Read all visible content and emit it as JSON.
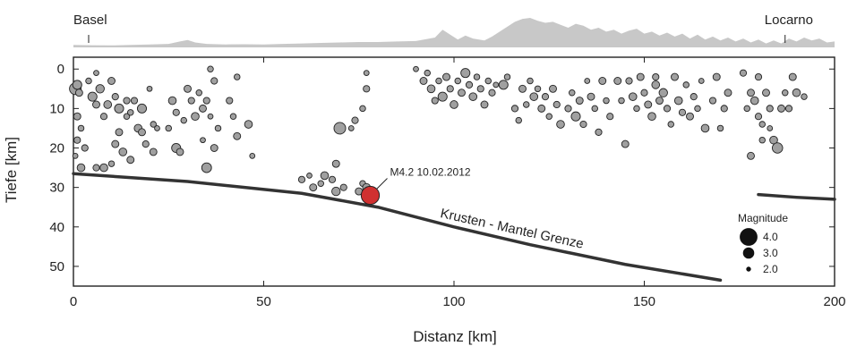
{
  "chart_data": {
    "type": "scatter",
    "xlabel": "Distanz [km]",
    "ylabel": "Tiefe [km]",
    "xlim": [
      0,
      200
    ],
    "ylim": [
      55,
      -3
    ],
    "xticks": [
      0,
      50,
      100,
      150,
      200
    ],
    "yticks": [
      0,
      10,
      20,
      30,
      40,
      50
    ],
    "grid": false,
    "profile_labels": [
      {
        "text": "Basel",
        "x": 4
      },
      {
        "text": "Locarno",
        "x": 187
      }
    ],
    "topography": [
      [
        0,
        0.25
      ],
      [
        5,
        0.22
      ],
      [
        10,
        0.2
      ],
      [
        15,
        0.25
      ],
      [
        20,
        0.3
      ],
      [
        25,
        0.35
      ],
      [
        28,
        0.6
      ],
      [
        30,
        0.75
      ],
      [
        32,
        0.5
      ],
      [
        35,
        0.35
      ],
      [
        40,
        0.3
      ],
      [
        45,
        0.32
      ],
      [
        50,
        0.3
      ],
      [
        55,
        0.35
      ],
      [
        60,
        0.4
      ],
      [
        65,
        0.45
      ],
      [
        70,
        0.5
      ],
      [
        75,
        0.55
      ],
      [
        80,
        0.55
      ],
      [
        85,
        0.6
      ],
      [
        90,
        0.65
      ],
      [
        95,
        1.0
      ],
      [
        97,
        1.8
      ],
      [
        99,
        1.3
      ],
      [
        101,
        0.8
      ],
      [
        103,
        1.2
      ],
      [
        105,
        0.9
      ],
      [
        108,
        0.7
      ],
      [
        110,
        1.1
      ],
      [
        112,
        1.6
      ],
      [
        114,
        2.1
      ],
      [
        116,
        2.6
      ],
      [
        118,
        2.9
      ],
      [
        120,
        3.0
      ],
      [
        122,
        2.7
      ],
      [
        124,
        2.5
      ],
      [
        126,
        2.6
      ],
      [
        128,
        2.3
      ],
      [
        130,
        2.0
      ],
      [
        132,
        2.4
      ],
      [
        134,
        2.2
      ],
      [
        136,
        1.8
      ],
      [
        138,
        2.0
      ],
      [
        140,
        1.6
      ],
      [
        142,
        1.8
      ],
      [
        144,
        1.4
      ],
      [
        146,
        1.7
      ],
      [
        148,
        1.9
      ],
      [
        150,
        1.4
      ],
      [
        152,
        1.6
      ],
      [
        154,
        1.2
      ],
      [
        156,
        1.5
      ],
      [
        158,
        1.1
      ],
      [
        160,
        1.4
      ],
      [
        162,
        0.9
      ],
      [
        164,
        1.3
      ],
      [
        166,
        0.8
      ],
      [
        168,
        1.1
      ],
      [
        170,
        0.7
      ],
      [
        172,
        1.0
      ],
      [
        174,
        0.6
      ],
      [
        176,
        0.9
      ],
      [
        178,
        0.5
      ],
      [
        180,
        0.8
      ],
      [
        182,
        0.4
      ],
      [
        184,
        0.7
      ],
      [
        186,
        0.4
      ],
      [
        188,
        0.9
      ],
      [
        190,
        0.6
      ],
      [
        192,
        1.0
      ],
      [
        194,
        0.7
      ],
      [
        196,
        0.9
      ],
      [
        198,
        0.5
      ],
      [
        200,
        0.6
      ]
    ],
    "boundary_label": "Krusten - Mantel Grenze",
    "boundary": {
      "segments": [
        [
          [
            0,
            26.5
          ],
          [
            30,
            28.5
          ],
          [
            60,
            31.5
          ],
          [
            80,
            35
          ],
          [
            100,
            40
          ],
          [
            120,
            44.5
          ],
          [
            145,
            49.5
          ],
          [
            170,
            53.5
          ]
        ],
        [
          [
            180,
            31.8
          ],
          [
            190,
            32.5
          ],
          [
            200,
            33
          ]
        ]
      ]
    },
    "highlight": {
      "label": "M4.2 10.02.2012",
      "x": 78,
      "y": 32,
      "mag": 4.2,
      "color": "#d03030"
    },
    "legend": {
      "title": "Magnitude",
      "position": "bottom-right",
      "entries": [
        {
          "label": "4.0",
          "mag": 4.0
        },
        {
          "label": "3.0",
          "mag": 3.0
        },
        {
          "label": "2.0",
          "mag": 2.0
        }
      ]
    },
    "series": [
      {
        "marker_color": "#a0a0a0",
        "points": [
          [
            0.5,
            5,
            3.2
          ],
          [
            1,
            4,
            2.8
          ],
          [
            1.5,
            6,
            2.5
          ],
          [
            1,
            12,
            2.5
          ],
          [
            2,
            15,
            2.3
          ],
          [
            1,
            18,
            2.4
          ],
          [
            0.5,
            22,
            2.2
          ],
          [
            2,
            25,
            2.6
          ],
          [
            3,
            20,
            2.4
          ],
          [
            4,
            3,
            2.3
          ],
          [
            5,
            7,
            2.8
          ],
          [
            6,
            1,
            2.2
          ],
          [
            6,
            9,
            2.5
          ],
          [
            7,
            5,
            2.7
          ],
          [
            8,
            12,
            2.4
          ],
          [
            9,
            9,
            2.6
          ],
          [
            10,
            3,
            2.5
          ],
          [
            11,
            7,
            2.4
          ],
          [
            12,
            10,
            2.8
          ],
          [
            12,
            16,
            2.5
          ],
          [
            13,
            21,
            2.6
          ],
          [
            14,
            12,
            2.3
          ],
          [
            15,
            23,
            2.5
          ],
          [
            16,
            8,
            2.4
          ],
          [
            17,
            15,
            2.6
          ],
          [
            18,
            10,
            2.8
          ],
          [
            19,
            19,
            2.4
          ],
          [
            20,
            5,
            2.2
          ],
          [
            21,
            14,
            2.3
          ],
          [
            21,
            21,
            2.5
          ],
          [
            6,
            25,
            2.4
          ],
          [
            8,
            25,
            2.6
          ],
          [
            10,
            24,
            2.3
          ],
          [
            11,
            19,
            2.5
          ],
          [
            14,
            8,
            2.4
          ],
          [
            15,
            11,
            2.3
          ],
          [
            18,
            16,
            2.5
          ],
          [
            22,
            15,
            2.2
          ],
          [
            25,
            15,
            2.3
          ],
          [
            26,
            8,
            2.6
          ],
          [
            27,
            11,
            2.4
          ],
          [
            27,
            20,
            2.8
          ],
          [
            28,
            21,
            2.5
          ],
          [
            29,
            13,
            2.3
          ],
          [
            30,
            5,
            2.5
          ],
          [
            31,
            8,
            2.4
          ],
          [
            32,
            12,
            2.6
          ],
          [
            33,
            6,
            2.3
          ],
          [
            34,
            10,
            2.5
          ],
          [
            34,
            18,
            2.2
          ],
          [
            35,
            25,
            2.9
          ],
          [
            35,
            8,
            2.4
          ],
          [
            36,
            0,
            2.3
          ],
          [
            36,
            12,
            2.2
          ],
          [
            37,
            3,
            2.4
          ],
          [
            37,
            20,
            2.5
          ],
          [
            38,
            15,
            2.3
          ],
          [
            41,
            8,
            2.4
          ],
          [
            42,
            12,
            2.3
          ],
          [
            43,
            2,
            2.3
          ],
          [
            43,
            17,
            2.5
          ],
          [
            46,
            14,
            2.6
          ],
          [
            47,
            22,
            2.2
          ],
          [
            60,
            28,
            2.4
          ],
          [
            62,
            27,
            2.2
          ],
          [
            63,
            30,
            2.5
          ],
          [
            65,
            29,
            2.3
          ],
          [
            66,
            27,
            2.6
          ],
          [
            68,
            28,
            2.4
          ],
          [
            69,
            24,
            2.5
          ],
          [
            69,
            31,
            2.7
          ],
          [
            70,
            15,
            3.2
          ],
          [
            71,
            30,
            2.4
          ],
          [
            73,
            15,
            2.2
          ],
          [
            74,
            13,
            2.4
          ],
          [
            75,
            31,
            2.5
          ],
          [
            76,
            29,
            2.3
          ],
          [
            77,
            30,
            2.6
          ],
          [
            76,
            10,
            2.3
          ],
          [
            77,
            5,
            2.4
          ],
          [
            77,
            1,
            2.2
          ],
          [
            90,
            0,
            2.2
          ],
          [
            92,
            3,
            2.5
          ],
          [
            93,
            1,
            2.3
          ],
          [
            94,
            5,
            2.6
          ],
          [
            95,
            8,
            2.4
          ],
          [
            96,
            3,
            2.3
          ],
          [
            97,
            7,
            2.8
          ],
          [
            98,
            2,
            2.5
          ],
          [
            99,
            5,
            2.4
          ],
          [
            100,
            9,
            2.6
          ],
          [
            101,
            3,
            2.3
          ],
          [
            102,
            6,
            2.5
          ],
          [
            103,
            1,
            2.8
          ],
          [
            104,
            4,
            2.4
          ],
          [
            105,
            7,
            2.6
          ],
          [
            106,
            2,
            2.3
          ],
          [
            107,
            5,
            2.4
          ],
          [
            108,
            9,
            2.5
          ],
          [
            109,
            3,
            2.3
          ],
          [
            110,
            6,
            2.4
          ],
          [
            111,
            4,
            2.2
          ],
          [
            113,
            4,
            2.8
          ],
          [
            114,
            2,
            2.3
          ],
          [
            116,
            10,
            2.4
          ],
          [
            117,
            13,
            2.3
          ],
          [
            118,
            5,
            2.5
          ],
          [
            119,
            9,
            2.3
          ],
          [
            120,
            3,
            2.3
          ],
          [
            121,
            7,
            2.6
          ],
          [
            122,
            5,
            2.3
          ],
          [
            123,
            10,
            2.5
          ],
          [
            124,
            7,
            2.4
          ],
          [
            125,
            12,
            2.3
          ],
          [
            126,
            5,
            2.5
          ],
          [
            127,
            9,
            2.4
          ],
          [
            128,
            14,
            2.6
          ],
          [
            130,
            10,
            2.4
          ],
          [
            131,
            6,
            2.3
          ],
          [
            132,
            12,
            2.8
          ],
          [
            133,
            8,
            2.5
          ],
          [
            134,
            14,
            2.4
          ],
          [
            135,
            3,
            2.2
          ],
          [
            136,
            7,
            2.5
          ],
          [
            137,
            10,
            2.3
          ],
          [
            138,
            16,
            2.4
          ],
          [
            139,
            3,
            2.5
          ],
          [
            140,
            8,
            2.3
          ],
          [
            141,
            12,
            2.4
          ],
          [
            143,
            3,
            2.5
          ],
          [
            144,
            8,
            2.3
          ],
          [
            145,
            19,
            2.5
          ],
          [
            146,
            3,
            2.4
          ],
          [
            147,
            7,
            2.6
          ],
          [
            148,
            10,
            2.3
          ],
          [
            149,
            2,
            2.5
          ],
          [
            150,
            6,
            2.4
          ],
          [
            151,
            9,
            2.5
          ],
          [
            152,
            12,
            2.6
          ],
          [
            153,
            2,
            2.4
          ],
          [
            153,
            4,
            2.6
          ],
          [
            154,
            8,
            2.5
          ],
          [
            155,
            6,
            2.7
          ],
          [
            156,
            10,
            2.4
          ],
          [
            157,
            14,
            2.3
          ],
          [
            158,
            2,
            2.5
          ],
          [
            159,
            8,
            2.6
          ],
          [
            160,
            11,
            2.4
          ],
          [
            161,
            4,
            2.3
          ],
          [
            162,
            12,
            2.5
          ],
          [
            163,
            7,
            2.4
          ],
          [
            164,
            10,
            2.3
          ],
          [
            165,
            3,
            2.2
          ],
          [
            166,
            15,
            2.6
          ],
          [
            168,
            8,
            2.4
          ],
          [
            169,
            2,
            2.5
          ],
          [
            170,
            15,
            2.3
          ],
          [
            171,
            10,
            2.4
          ],
          [
            172,
            6,
            2.5
          ],
          [
            176,
            1,
            2.4
          ],
          [
            177,
            10,
            2.3
          ],
          [
            178,
            6,
            2.5
          ],
          [
            179,
            8,
            2.6
          ],
          [
            180,
            12,
            2.4
          ],
          [
            181,
            14,
            2.3
          ],
          [
            182,
            6,
            2.5
          ],
          [
            183,
            10,
            2.4
          ],
          [
            184,
            18,
            2.6
          ],
          [
            185,
            20,
            3.0
          ],
          [
            186,
            10,
            2.5
          ],
          [
            187,
            6,
            2.3
          ],
          [
            188,
            10,
            2.4
          ],
          [
            189,
            2,
            2.5
          ],
          [
            190,
            6,
            2.6
          ],
          [
            192,
            7,
            2.3
          ],
          [
            178,
            22,
            2.5
          ],
          [
            180,
            2,
            2.4
          ],
          [
            181,
            18,
            2.3
          ],
          [
            183,
            15,
            2.2
          ]
        ]
      }
    ]
  }
}
